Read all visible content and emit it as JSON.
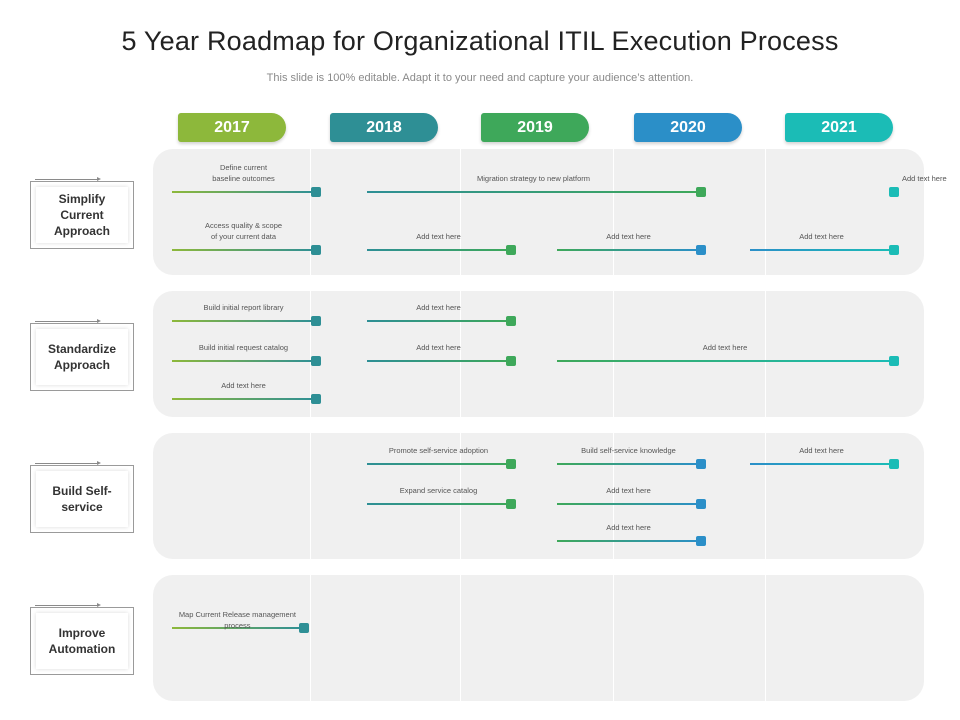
{
  "title": "5 Year Roadmap for Organizational ITIL Execution Process",
  "subtitle": "This slide is 100% editable. Adapt it to your need and capture your audience’s attention.",
  "years": [
    {
      "label": "2017",
      "color": "#8db83b"
    },
    {
      "label": "2018",
      "color": "#2e8f95"
    },
    {
      "label": "2019",
      "color": "#3ea85a"
    },
    {
      "label": "2020",
      "color": "#2b8fc8"
    },
    {
      "label": "2021",
      "color": "#1bbcb6"
    }
  ],
  "rows": [
    {
      "label": "Simplify\nCurrent\nApproach"
    },
    {
      "label": "Standardize\nApproach"
    },
    {
      "label": "Build Self-\nservice"
    },
    {
      "label": "Improve\nAutomation"
    }
  ],
  "bars": [
    {
      "row": 0,
      "lane": 0,
      "from_year": 2017,
      "to_year": 2017,
      "text": "Define current\nbaseline outcomes",
      "color": "#2e8f95",
      "gradient_from": "#8db83b"
    },
    {
      "row": 0,
      "lane": 0,
      "from_year": 2018,
      "to_year": 2019,
      "text": "Migration strategy to new platform",
      "color": "#3ea85a",
      "gradient_from": "#2e8f95"
    },
    {
      "row": 0,
      "lane": 0,
      "from_year": 2021,
      "to_year": 2021,
      "text": "Add text here",
      "color": "#1bbcb6",
      "gradient_from": "#2b8fc8"
    },
    {
      "row": 0,
      "lane": 1,
      "from_year": 2017,
      "to_year": 2017,
      "text": "Access quality & scope\nof your current data",
      "color": "#2e8f95",
      "gradient_from": "#8db83b"
    },
    {
      "row": 0,
      "lane": 1,
      "from_year": 2018,
      "to_year": 2018,
      "text": "Add text here",
      "color": "#3ea85a",
      "gradient_from": "#2e8f95"
    },
    {
      "row": 0,
      "lane": 1,
      "from_year": 2019,
      "to_year": 2019,
      "text": "Add text here",
      "color": "#2b8fc8",
      "gradient_from": "#3ea85a"
    },
    {
      "row": 0,
      "lane": 1,
      "from_year": 2020,
      "to_year": 2020,
      "text": "Add text here",
      "color": "#1bbcb6",
      "gradient_from": "#2b8fc8"
    },
    {
      "row": 1,
      "lane": 0,
      "from_year": 2017,
      "to_year": 2017,
      "text": "Build initial report library",
      "color": "#2e8f95",
      "gradient_from": "#8db83b"
    },
    {
      "row": 1,
      "lane": 0,
      "from_year": 2018,
      "to_year": 2018,
      "text": "Add text here",
      "color": "#3ea85a",
      "gradient_from": "#2e8f95"
    },
    {
      "row": 1,
      "lane": 1,
      "from_year": 2017,
      "to_year": 2017,
      "text": "Build initial request catalog",
      "color": "#2e8f95",
      "gradient_from": "#8db83b"
    },
    {
      "row": 1,
      "lane": 1,
      "from_year": 2018,
      "to_year": 2018,
      "text": "Add text here",
      "color": "#3ea85a",
      "gradient_from": "#2e8f95"
    },
    {
      "row": 1,
      "lane": 1,
      "from_year": 2019,
      "to_year": 2021,
      "text": "Add text here",
      "color": "#1bbcb6",
      "gradient_from": "#3ea85a"
    },
    {
      "row": 1,
      "lane": 2,
      "from_year": 2017,
      "to_year": 2017,
      "text": "Add text here",
      "color": "#2e8f95",
      "gradient_from": "#8db83b"
    },
    {
      "row": 2,
      "lane": 0,
      "from_year": 2018,
      "to_year": 2018,
      "text": "Promote self-service adoption",
      "color": "#3ea85a",
      "gradient_from": "#2e8f95"
    },
    {
      "row": 2,
      "lane": 0,
      "from_year": 2019,
      "to_year": 2019,
      "text": "Build self-service knowledge",
      "color": "#2b8fc8",
      "gradient_from": "#3ea85a"
    },
    {
      "row": 2,
      "lane": 0,
      "from_year": 2020,
      "to_year": 2020,
      "text": "Add text here",
      "color": "#1bbcb6",
      "gradient_from": "#2b8fc8"
    },
    {
      "row": 2,
      "lane": 1,
      "from_year": 2018,
      "to_year": 2018,
      "text": "Expand service catalog",
      "color": "#3ea85a",
      "gradient_from": "#2e8f95"
    },
    {
      "row": 2,
      "lane": 1,
      "from_year": 2019,
      "to_year": 2019,
      "text": "Add text here",
      "color": "#2b8fc8",
      "gradient_from": "#3ea85a"
    },
    {
      "row": 2,
      "lane": 2,
      "from_year": 2019,
      "to_year": 2019,
      "text": "Add text here",
      "color": "#2b8fc8",
      "gradient_from": "#3ea85a"
    },
    {
      "row": 3,
      "lane": 0,
      "from_year": 2017,
      "to_year": 2017.6,
      "text": "Map Current Release management process",
      "color": "#2e8f95",
      "gradient_from": "#8db83b"
    }
  ]
}
